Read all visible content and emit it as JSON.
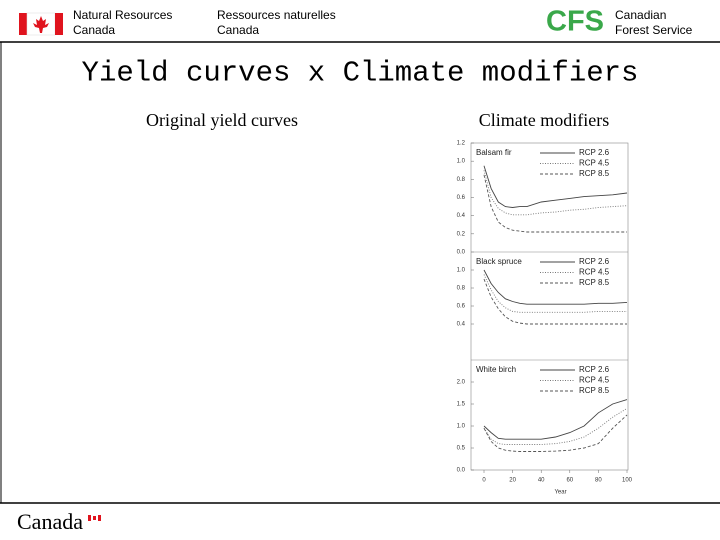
{
  "header": {
    "nrcan_en": [
      "Natural Resources",
      "Canada"
    ],
    "nrcan_fr": [
      "Ressources naturelles",
      "Canada"
    ],
    "cfs_logo": "CFS",
    "cfs_name": [
      "Canadian",
      "Forest Service"
    ]
  },
  "title": "Yield curves x Climate modifiers",
  "left_caption": "Original yield curves",
  "right_caption": "Climate modifiers",
  "footer": "Canada",
  "chart_data": [
    {
      "type": "line",
      "title": "Balsam fir",
      "x": [
        0,
        5,
        10,
        15,
        20,
        25,
        30,
        40,
        50,
        60,
        70,
        80,
        90,
        100
      ],
      "xlim": [
        0,
        100
      ],
      "ylim": [
        0,
        1.2
      ],
      "yticks": [
        {
          "value": 0,
          "label": "0.0"
        },
        0.2,
        0.4,
        0.6,
        0.8,
        {
          "value": 1,
          "label": "1.0"
        },
        1.2
      ],
      "series": [
        {
          "name": "RCP 2.6",
          "color": "#444",
          "dash": "none",
          "values": [
            0.95,
            0.7,
            0.55,
            0.5,
            0.49,
            0.5,
            0.5,
            0.55,
            0.57,
            0.59,
            0.61,
            0.62,
            0.63,
            0.65
          ]
        },
        {
          "name": "RCP 4.5",
          "color": "#777",
          "dash": "1 1.5",
          "values": [
            0.9,
            0.6,
            0.48,
            0.43,
            0.41,
            0.41,
            0.41,
            0.43,
            0.44,
            0.46,
            0.47,
            0.49,
            0.5,
            0.51
          ]
        },
        {
          "name": "RCP 8.5",
          "color": "#555",
          "dash": "3 2",
          "values": [
            0.85,
            0.5,
            0.33,
            0.27,
            0.24,
            0.23,
            0.22,
            0.22,
            0.22,
            0.22,
            0.22,
            0.22,
            0.22,
            0.22
          ]
        }
      ]
    },
    {
      "type": "line",
      "title": "Black spruce",
      "x": [
        0,
        5,
        10,
        15,
        20,
        25,
        30,
        40,
        50,
        60,
        70,
        80,
        90,
        100
      ],
      "xlim": [
        0,
        100
      ],
      "ylim": [
        0,
        1.2
      ],
      "yticks": [
        0.4,
        0.6,
        0.8,
        {
          "value": 1,
          "label": "1.0"
        }
      ],
      "series": [
        {
          "name": "RCP 2.6",
          "color": "#444",
          "dash": "none",
          "values": [
            1.0,
            0.85,
            0.75,
            0.68,
            0.65,
            0.63,
            0.62,
            0.62,
            0.62,
            0.62,
            0.62,
            0.63,
            0.63,
            0.64
          ]
        },
        {
          "name": "RCP 4.5",
          "color": "#777",
          "dash": "1 1.5",
          "values": [
            0.95,
            0.78,
            0.65,
            0.58,
            0.54,
            0.53,
            0.53,
            0.53,
            0.53,
            0.53,
            0.53,
            0.54,
            0.54,
            0.54
          ]
        },
        {
          "name": "RCP 8.5",
          "color": "#555",
          "dash": "3 2",
          "values": [
            0.9,
            0.7,
            0.57,
            0.48,
            0.43,
            0.41,
            0.4,
            0.4,
            0.4,
            0.4,
            0.4,
            0.4,
            0.4,
            0.4
          ]
        }
      ]
    },
    {
      "type": "line",
      "title": "White birch",
      "x": [
        0,
        5,
        10,
        15,
        20,
        25,
        30,
        40,
        50,
        60,
        70,
        80,
        90,
        100
      ],
      "xlim": [
        0,
        100
      ],
      "ylim": [
        0,
        2.5
      ],
      "xticks": [
        0,
        20,
        40,
        60,
        80,
        100
      ],
      "xlabel": "Year",
      "yticks": [
        {
          "value": 0,
          "label": "0.0"
        },
        0.5,
        {
          "value": 1,
          "label": "1.0"
        },
        1.5,
        {
          "value": 2,
          "label": "2.0"
        }
      ],
      "series": [
        {
          "name": "RCP 2.6",
          "color": "#444",
          "dash": "none",
          "values": [
            1.0,
            0.85,
            0.72,
            0.7,
            0.7,
            0.7,
            0.7,
            0.7,
            0.75,
            0.85,
            1.0,
            1.3,
            1.5,
            1.6
          ]
        },
        {
          "name": "RCP 4.5",
          "color": "#777",
          "dash": "1 1.5",
          "values": [
            0.95,
            0.7,
            0.6,
            0.58,
            0.58,
            0.58,
            0.58,
            0.58,
            0.6,
            0.65,
            0.75,
            0.95,
            1.2,
            1.4
          ]
        },
        {
          "name": "RCP 8.5",
          "color": "#555",
          "dash": "3 2",
          "values": [
            0.95,
            0.65,
            0.5,
            0.45,
            0.43,
            0.42,
            0.42,
            0.42,
            0.43,
            0.45,
            0.5,
            0.6,
            0.95,
            1.25
          ]
        }
      ]
    }
  ]
}
